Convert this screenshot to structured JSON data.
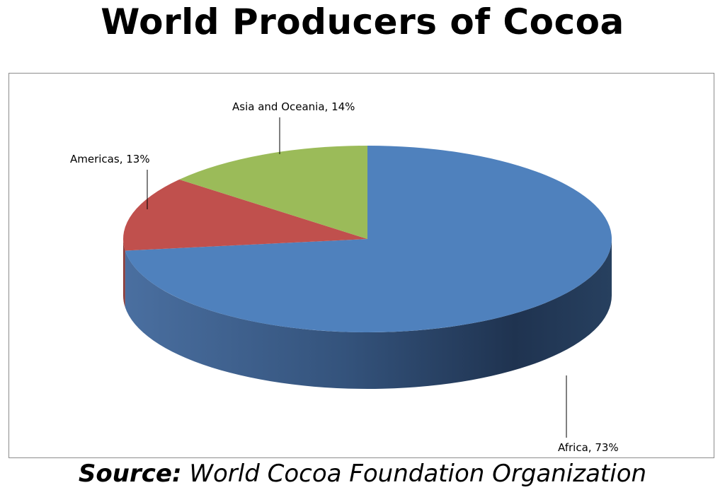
{
  "title": "World Producers of Cocoa",
  "source": {
    "label": "Source:",
    "text": "World Cocoa Foundation Organization"
  },
  "chart_data": {
    "type": "pie",
    "title": "World Producers of Cocoa",
    "three_d": true,
    "slices": [
      {
        "label": "Africa",
        "value": 73,
        "display": "Africa, 73%",
        "color": "#4F81BD",
        "side_color": "#2f4f75"
      },
      {
        "label": "Americas",
        "value": 13,
        "display": "Americas, 13%",
        "color": "#C0504D",
        "side_color": "#8a3a38"
      },
      {
        "label": "Asia and Oceania",
        "value": 14,
        "display": "Asia and Oceania, 14%",
        "color": "#9BBB59",
        "side_color": "#6f8a3d"
      }
    ]
  }
}
